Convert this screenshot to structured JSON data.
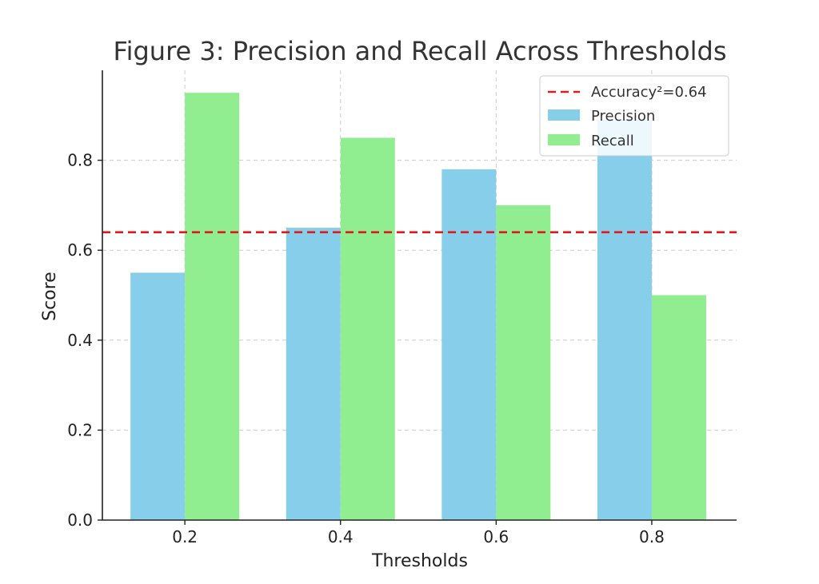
{
  "chart_data": {
    "type": "bar",
    "title": "Figure 3: Precision and Recall Across Thresholds",
    "xlabel": "Thresholds",
    "ylabel": "Score",
    "categories": [
      "0.2",
      "0.4",
      "0.6",
      "0.8"
    ],
    "series": [
      {
        "name": "Precision",
        "values": [
          0.55,
          0.65,
          0.78,
          0.89
        ],
        "color": "#87ceeb"
      },
      {
        "name": "Recall",
        "values": [
          0.95,
          0.85,
          0.7,
          0.5
        ],
        "color": "#90ee90"
      }
    ],
    "reference_line": {
      "label": "Accuracy²=0.64",
      "value": 0.64,
      "color": "#e31a1c",
      "style": "dashed"
    },
    "ylim": [
      0,
      1.0
    ],
    "yticks": [
      "0.0",
      "0.2",
      "0.4",
      "0.6",
      "0.8"
    ],
    "ytick_values": [
      0,
      0.2,
      0.4,
      0.6,
      0.8
    ],
    "grid": true,
    "legend_position": "top-right"
  }
}
